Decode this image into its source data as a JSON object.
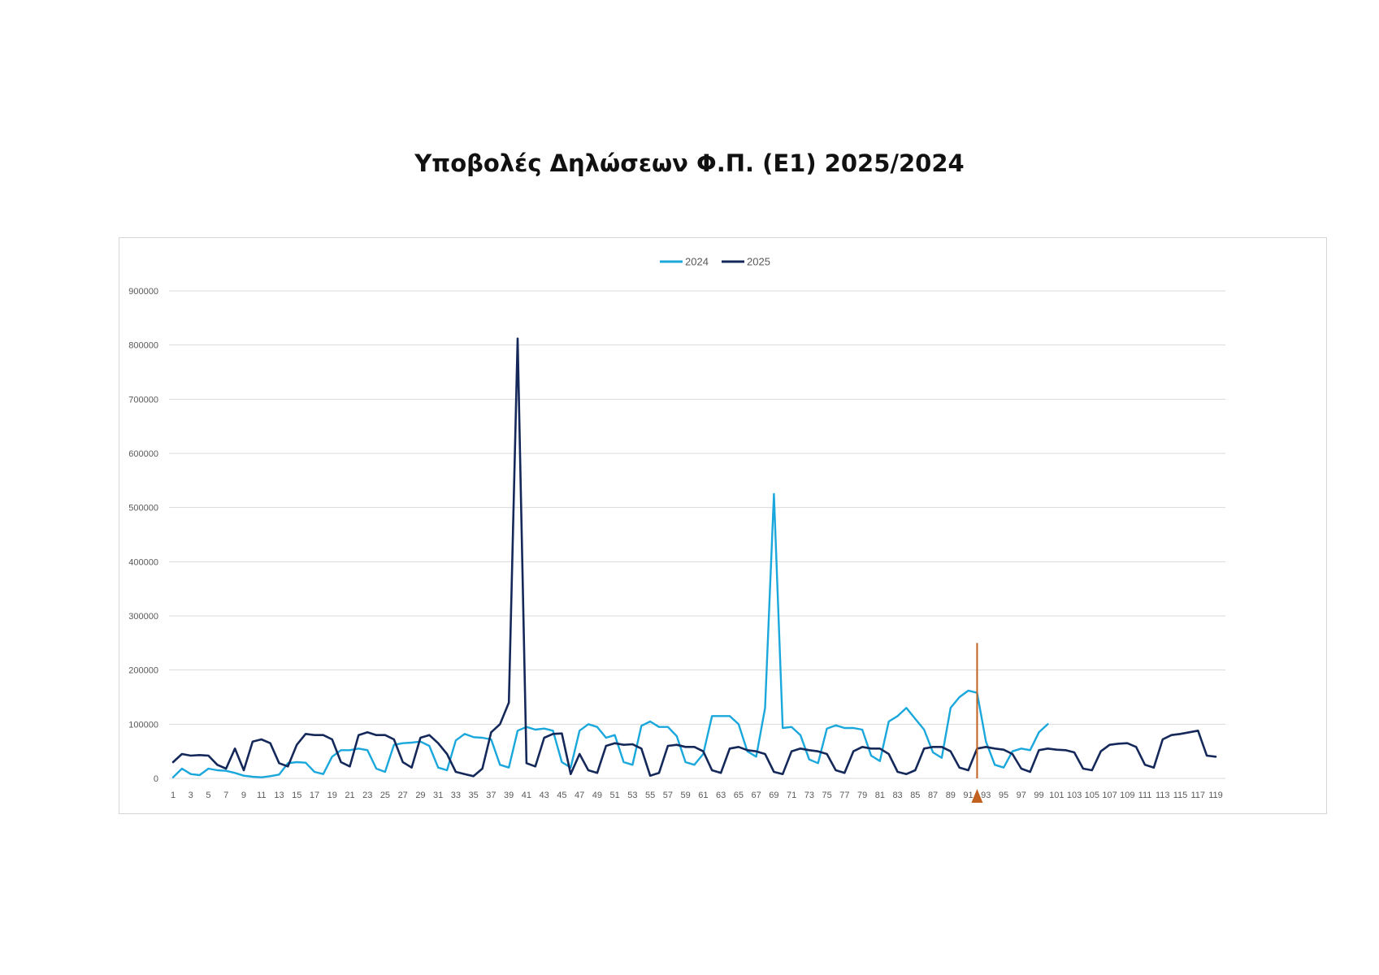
{
  "page": {
    "title": "Υποβολές Δηλώσεων Φ.Π. (Ε1) 2025/2024"
  },
  "colors": {
    "series_2024": "#1aa7dc",
    "series_2025": "#14285a",
    "marker": "#c2611f",
    "grid": "#d9d9d9",
    "tick_text": "#595959"
  },
  "chart_data": {
    "type": "line",
    "title": "Υποβολές Δηλώσεων Φ.Π. (Ε1) 2025/2024",
    "xlabel": "",
    "ylabel": "",
    "ylim": [
      0,
      900000
    ],
    "y_ticks": [
      0,
      100000,
      200000,
      300000,
      400000,
      500000,
      600000,
      700000,
      800000,
      900000
    ],
    "x_range": [
      1,
      119
    ],
    "x_tick_labels": [
      "1",
      "3",
      "5",
      "7",
      "9",
      "11",
      "13",
      "15",
      "17",
      "19",
      "21",
      "23",
      "25",
      "27",
      "29",
      "31",
      "33",
      "35",
      "37",
      "39",
      "41",
      "43",
      "45",
      "47",
      "49",
      "51",
      "53",
      "55",
      "57",
      "59",
      "61",
      "63",
      "65",
      "67",
      "69",
      "71",
      "73",
      "75",
      "77",
      "79",
      "81",
      "83",
      "85",
      "87",
      "89",
      "91",
      "93",
      "95",
      "97",
      "99",
      "101",
      "103",
      "105",
      "107",
      "109",
      "111",
      "113",
      "115",
      "117",
      "119"
    ],
    "grid": "horizontal",
    "legend_position": "top-center",
    "series": [
      {
        "name": "2024",
        "color": "#1aa7dc",
        "values": [
          2000,
          18000,
          8000,
          6000,
          18000,
          15000,
          14000,
          10000,
          5000,
          3000,
          2000,
          4000,
          7000,
          28000,
          30000,
          29000,
          12000,
          8000,
          40000,
          52000,
          52000,
          55000,
          52000,
          18000,
          12000,
          62000,
          65000,
          66000,
          68000,
          60000,
          20000,
          15000,
          70000,
          82000,
          76000,
          75000,
          72000,
          25000,
          20000,
          88000,
          95000,
          90000,
          92000,
          88000,
          30000,
          20000,
          88000,
          100000,
          95000,
          75000,
          80000,
          30000,
          25000,
          97000,
          105000,
          95000,
          95000,
          78000,
          30000,
          25000,
          45000,
          115000,
          115000,
          115000,
          100000,
          50000,
          40000,
          130000,
          525000,
          93000,
          95000,
          80000,
          35000,
          28000,
          92000,
          98000,
          93000,
          93000,
          90000,
          42000,
          32000,
          105000,
          115000,
          130000,
          110000,
          90000,
          48000,
          38000,
          130000,
          150000,
          162000,
          158000,
          68000,
          25000,
          20000,
          50000,
          55000,
          52000,
          85000,
          100000
        ]
      },
      {
        "name": "2025",
        "color": "#14285a",
        "values": [
          30000,
          45000,
          42000,
          43000,
          42000,
          25000,
          18000,
          55000,
          15000,
          68000,
          72000,
          65000,
          28000,
          22000,
          62000,
          82000,
          80000,
          80000,
          72000,
          30000,
          22000,
          80000,
          85000,
          80000,
          80000,
          72000,
          30000,
          20000,
          75000,
          80000,
          65000,
          45000,
          12000,
          8000,
          4000,
          18000,
          85000,
          100000,
          140000,
          812000,
          28000,
          22000,
          75000,
          82000,
          83000,
          8000,
          45000,
          15000,
          10000,
          60000,
          65000,
          62000,
          63000,
          55000,
          5000,
          10000,
          60000,
          62000,
          58000,
          58000,
          50000,
          15000,
          10000,
          55000,
          58000,
          52000,
          50000,
          45000,
          12000,
          8000,
          50000,
          55000,
          52000,
          50000,
          45000,
          15000,
          10000,
          50000,
          58000,
          55000,
          55000,
          45000,
          12000,
          8000,
          15000,
          55000,
          58000,
          58000,
          50000,
          20000,
          15000,
          55000,
          58000,
          55000,
          53000,
          45000,
          18000,
          12000,
          52000,
          55000,
          53000,
          52000,
          48000,
          18000,
          15000,
          50000,
          62000,
          64000,
          65000,
          58000,
          25000,
          20000,
          72000,
          80000,
          82000,
          85000,
          88000,
          42000,
          40000
        ]
      }
    ],
    "marker": {
      "x": 92,
      "y_top": 250000
    }
  }
}
